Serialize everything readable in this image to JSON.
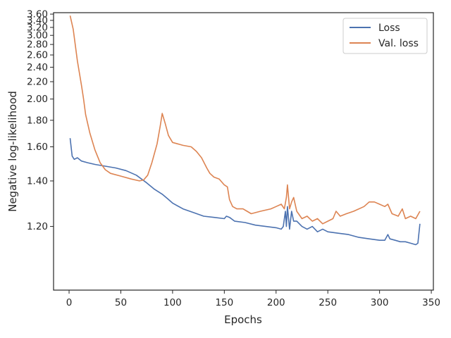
{
  "chart_data": {
    "type": "line",
    "title": "",
    "xlabel": "Epochs",
    "ylabel": "Negative log-likelihood",
    "xlim": [
      -15,
      352
    ],
    "ylim": [
      1.0,
      3.65
    ],
    "y_scale": "reciprocal",
    "x_ticks": [
      0,
      50,
      100,
      150,
      200,
      250,
      300,
      350
    ],
    "y_ticks": [
      1.2,
      1.4,
      1.6,
      1.8,
      2.0,
      2.2,
      2.4,
      2.6,
      2.8,
      3.0,
      3.2,
      3.4,
      3.6
    ],
    "y_tick_labels": [
      "1.20",
      "1.40",
      "1.60",
      "1.80",
      "2.00",
      "2.20",
      "2.40",
      "2.60",
      "2.80",
      "3.00",
      "3.20",
      "3.40",
      "3.60"
    ],
    "x_tick_labels": [
      "0",
      "50",
      "100",
      "150",
      "200",
      "250",
      "300",
      "350"
    ],
    "grid": false,
    "legend": "top-right",
    "series": [
      {
        "name": "Loss",
        "color": "#4c72b0",
        "points": [
          [
            1,
            1.66
          ],
          [
            3,
            1.54
          ],
          [
            5,
            1.52
          ],
          [
            8,
            1.53
          ],
          [
            12,
            1.51
          ],
          [
            18,
            1.5
          ],
          [
            25,
            1.49
          ],
          [
            35,
            1.48
          ],
          [
            45,
            1.47
          ],
          [
            55,
            1.455
          ],
          [
            65,
            1.43
          ],
          [
            75,
            1.39
          ],
          [
            82,
            1.36
          ],
          [
            90,
            1.335
          ],
          [
            95,
            1.315
          ],
          [
            100,
            1.295
          ],
          [
            110,
            1.27
          ],
          [
            120,
            1.255
          ],
          [
            130,
            1.24
          ],
          [
            140,
            1.235
          ],
          [
            150,
            1.23
          ],
          [
            152,
            1.24
          ],
          [
            155,
            1.235
          ],
          [
            160,
            1.22
          ],
          [
            170,
            1.215
          ],
          [
            180,
            1.205
          ],
          [
            190,
            1.2
          ],
          [
            200,
            1.195
          ],
          [
            205,
            1.19
          ],
          [
            207,
            1.2
          ],
          [
            209,
            1.26
          ],
          [
            210,
            1.2
          ],
          [
            211,
            1.28
          ],
          [
            213,
            1.19
          ],
          [
            215,
            1.26
          ],
          [
            217,
            1.22
          ],
          [
            220,
            1.22
          ],
          [
            225,
            1.2
          ],
          [
            230,
            1.19
          ],
          [
            235,
            1.2
          ],
          [
            240,
            1.18
          ],
          [
            245,
            1.19
          ],
          [
            250,
            1.18
          ],
          [
            260,
            1.175
          ],
          [
            270,
            1.17
          ],
          [
            280,
            1.16
          ],
          [
            290,
            1.155
          ],
          [
            300,
            1.15
          ],
          [
            305,
            1.15
          ],
          [
            308,
            1.17
          ],
          [
            310,
            1.155
          ],
          [
            315,
            1.15
          ],
          [
            320,
            1.145
          ],
          [
            325,
            1.145
          ],
          [
            330,
            1.14
          ],
          [
            335,
            1.135
          ],
          [
            337,
            1.14
          ],
          [
            339,
            1.21
          ]
        ]
      },
      {
        "name": "Val. loss",
        "color": "#dd8452",
        "points": [
          [
            1,
            3.55
          ],
          [
            4,
            3.15
          ],
          [
            8,
            2.5
          ],
          [
            12,
            2.15
          ],
          [
            14,
            2.0
          ],
          [
            16,
            1.85
          ],
          [
            20,
            1.7
          ],
          [
            25,
            1.58
          ],
          [
            30,
            1.5
          ],
          [
            35,
            1.46
          ],
          [
            40,
            1.44
          ],
          [
            50,
            1.425
          ],
          [
            60,
            1.41
          ],
          [
            68,
            1.4
          ],
          [
            72,
            1.405
          ],
          [
            76,
            1.43
          ],
          [
            80,
            1.5
          ],
          [
            85,
            1.62
          ],
          [
            88,
            1.75
          ],
          [
            90,
            1.86
          ],
          [
            93,
            1.77
          ],
          [
            96,
            1.68
          ],
          [
            100,
            1.63
          ],
          [
            105,
            1.62
          ],
          [
            110,
            1.61
          ],
          [
            118,
            1.6
          ],
          [
            123,
            1.57
          ],
          [
            128,
            1.53
          ],
          [
            133,
            1.47
          ],
          [
            136,
            1.44
          ],
          [
            140,
            1.42
          ],
          [
            145,
            1.41
          ],
          [
            150,
            1.38
          ],
          [
            153,
            1.37
          ],
          [
            155,
            1.31
          ],
          [
            158,
            1.28
          ],
          [
            162,
            1.27
          ],
          [
            168,
            1.27
          ],
          [
            172,
            1.26
          ],
          [
            176,
            1.25
          ],
          [
            185,
            1.26
          ],
          [
            195,
            1.27
          ],
          [
            200,
            1.28
          ],
          [
            205,
            1.29
          ],
          [
            208,
            1.27
          ],
          [
            210,
            1.32
          ],
          [
            211,
            1.38
          ],
          [
            213,
            1.27
          ],
          [
            215,
            1.3
          ],
          [
            217,
            1.32
          ],
          [
            220,
            1.26
          ],
          [
            225,
            1.23
          ],
          [
            230,
            1.24
          ],
          [
            235,
            1.22
          ],
          [
            240,
            1.23
          ],
          [
            245,
            1.21
          ],
          [
            250,
            1.22
          ],
          [
            255,
            1.23
          ],
          [
            258,
            1.26
          ],
          [
            262,
            1.24
          ],
          [
            268,
            1.25
          ],
          [
            275,
            1.26
          ],
          [
            285,
            1.28
          ],
          [
            290,
            1.3
          ],
          [
            295,
            1.3
          ],
          [
            300,
            1.29
          ],
          [
            305,
            1.28
          ],
          [
            308,
            1.29
          ],
          [
            312,
            1.25
          ],
          [
            318,
            1.24
          ],
          [
            322,
            1.27
          ],
          [
            325,
            1.23
          ],
          [
            330,
            1.24
          ],
          [
            335,
            1.23
          ],
          [
            339,
            1.26
          ]
        ]
      }
    ]
  }
}
